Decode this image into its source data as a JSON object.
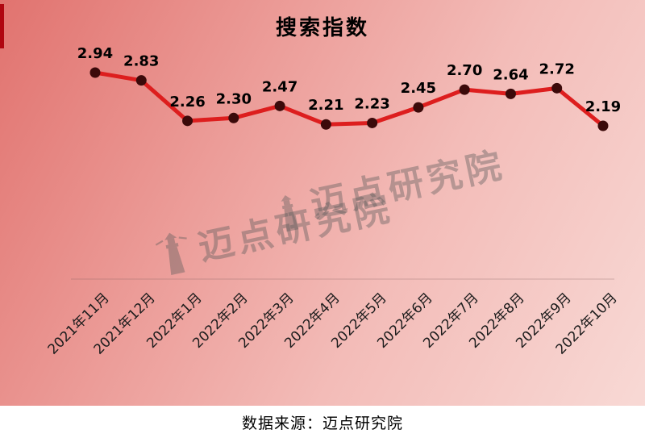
{
  "title": "搜索指数",
  "source_caption": "数据来源：迈点研究院",
  "watermark_text": "迈点研究院",
  "colors": {
    "bg_gradient_start": "#e1736f",
    "bg_gradient_end": "#f8d9d5",
    "accent_strip": "#b00610",
    "line": "#dd1e1e",
    "marker": "#3b0a0a",
    "data_label": "#000000"
  },
  "chart_data": {
    "type": "line",
    "title": "搜索指数",
    "categories": [
      "2021年11月",
      "2021年12月",
      "2022年1月",
      "2022年2月",
      "2022年3月",
      "2022年4月",
      "2022年5月",
      "2022年6月",
      "2022年7月",
      "2022年8月",
      "2022年9月",
      "2022年10月"
    ],
    "values": [
      2.94,
      2.83,
      2.26,
      2.3,
      2.47,
      2.21,
      2.23,
      2.45,
      2.7,
      2.64,
      2.72,
      2.19
    ],
    "series_name": "搜索指数",
    "xlabel": "",
    "ylabel": "",
    "ylim": [
      2.0,
      3.0
    ],
    "grid": false,
    "legend": false,
    "data_labels": true,
    "x_tick_rotation": 45
  }
}
